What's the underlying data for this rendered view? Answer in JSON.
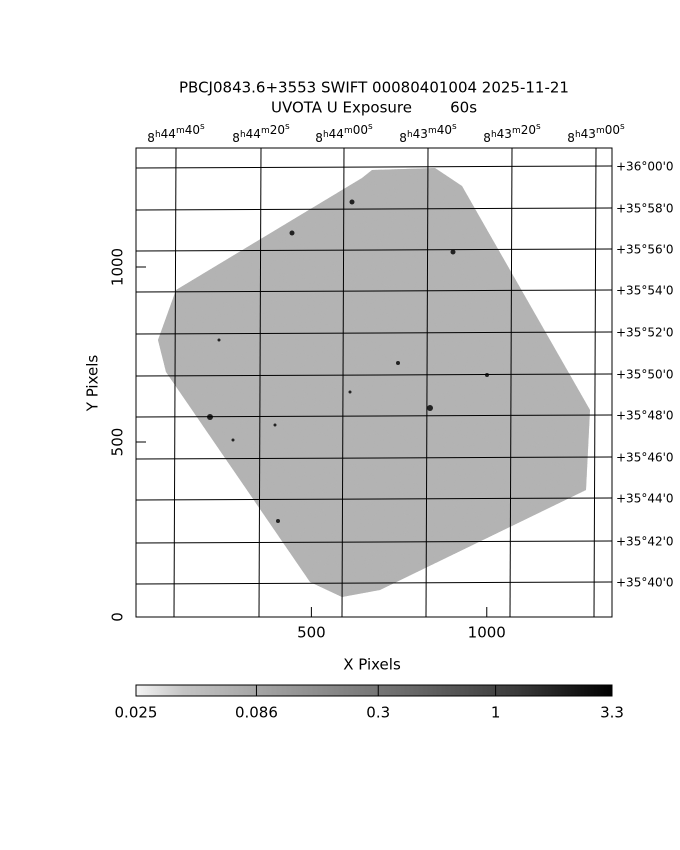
{
  "chart_data": {
    "type": "image",
    "title": "PBCJ0843.6+3553 SWIFT 00080401004 2025-11-21",
    "subtitle": "UVOTA U Exposure        60s",
    "x_label": "X Pixels",
    "y_label": "Y Pixels",
    "xlim": [
      0,
      1357
    ],
    "ylim": [
      0,
      1340
    ],
    "xticks": [
      500,
      1000
    ],
    "yticks": [
      0,
      500,
      1000
    ],
    "top_axis_labels": [
      "8h44m40s",
      "8h44m20s",
      "8h44m00s",
      "8h43m40s",
      "8h43m20s",
      "8h43m00s"
    ],
    "right_axis_labels": [
      "+36°00'0",
      "+35°58'0",
      "+35°56'0",
      "+35°54'0",
      "+35°52'0",
      "+35°50'0",
      "+35°48'0",
      "+35°46'0",
      "+35°44'0",
      "+35°42'0",
      "+35°40'0"
    ],
    "colorbar": {
      "lim": [
        0.025,
        3.3
      ],
      "log": true,
      "ticks": [
        {
          "value": 0.025,
          "label": "0.025"
        },
        {
          "value": 0.086,
          "label": "0.086"
        },
        0.3,
        1,
        3.3
      ]
    }
  }
}
